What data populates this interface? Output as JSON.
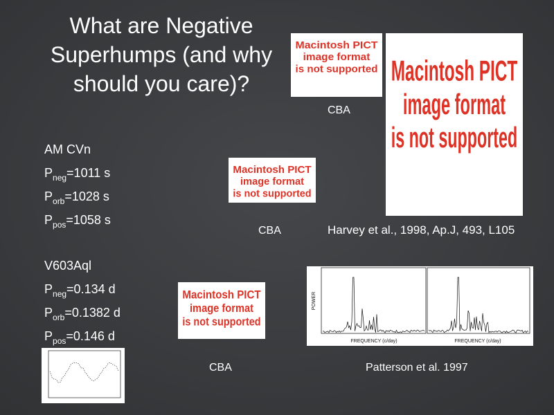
{
  "title": [
    "What are Negative",
    "Superhumps (and why",
    "should you care)?"
  ],
  "placeholders": [
    [
      "Macintosh PICT",
      "image format",
      "is not supported"
    ],
    [
      "Macintosh PICT",
      "image format",
      "is not supported"
    ],
    [
      "Macintosh PICT",
      "image format",
      "is not supported"
    ],
    [
      "Macintosh PICT",
      "image format",
      "is not supported"
    ]
  ],
  "captions": [
    "CBA",
    "CBA",
    "CBA"
  ],
  "stars": [
    {
      "name": "AM CVn",
      "periods": [
        {
          "symbol": "P",
          "sub": "neg",
          "value": "=1011 s"
        },
        {
          "symbol": "P",
          "sub": "orb",
          "value": "=1028 s"
        },
        {
          "symbol": "P",
          "sub": "pos",
          "value": "=1058 s"
        }
      ]
    },
    {
      "name": "V603Aql",
      "periods": [
        {
          "symbol": "P",
          "sub": "neg",
          "value": "=0.134 d"
        },
        {
          "symbol": "P",
          "sub": "orb",
          "value": "=0.1382 d"
        },
        {
          "symbol": "P",
          "sub": "pos",
          "value": "=0.146 d"
        }
      ]
    }
  ],
  "references": [
    "Harvey et al., 1998, Ap.J, 493, L105",
    "Patterson et al. 1997"
  ],
  "plot": {
    "y_label": "POWER",
    "x_labels": [
      "FREQUENCY (c/day)",
      "FREQUENCY (c/day)"
    ]
  }
}
